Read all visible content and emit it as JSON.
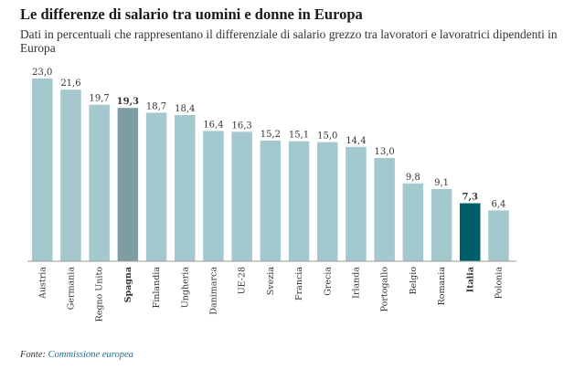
{
  "header": {
    "title": "Le differenze di salario tra uomini e donne in Europa",
    "subtitle": "Dati in percentuali che rappresentano il differenziale di salario grezzo tra lavoratori e lavoratrici dipendenti in Europa"
  },
  "footer": {
    "source_label": "Fonte:",
    "source_name": "Commissione europea"
  },
  "colors": {
    "default_bar": "#a3c8cd",
    "highlight_spain": "#7c9ea2",
    "highlight_italy": "#005e6b"
  },
  "chart_data": {
    "type": "bar",
    "title": "Le differenze di salario tra uomini e donne in Europa",
    "categories": [
      "Austria",
      "Germania",
      "Regno Unito",
      "Spagna",
      "Finlandia",
      "Ungheria",
      "Danimarca",
      "UE-28",
      "Svezia",
      "Francia",
      "Grecia",
      "Irlanda",
      "Portogallo",
      "Belgio",
      "Romania",
      "Italia",
      "Polonia"
    ],
    "values": [
      23.0,
      21.6,
      19.7,
      19.3,
      18.7,
      18.4,
      16.4,
      16.3,
      15.2,
      15.1,
      15.0,
      14.4,
      13.0,
      9.8,
      9.1,
      7.3,
      6.4
    ],
    "value_labels": [
      "23,0",
      "21,6",
      "19,7",
      "19,3",
      "18,7",
      "18,4",
      "16,4",
      "16,3",
      "15,2",
      "15,1",
      "15,0",
      "14,4",
      "13,0",
      "9,8",
      "9,1",
      "7,3",
      "6,4"
    ],
    "highlighted": [
      "Spagna",
      "Italia"
    ],
    "ylim": [
      0,
      23
    ],
    "xlabel": "",
    "ylabel": "",
    "grid": false,
    "legend": "none"
  }
}
